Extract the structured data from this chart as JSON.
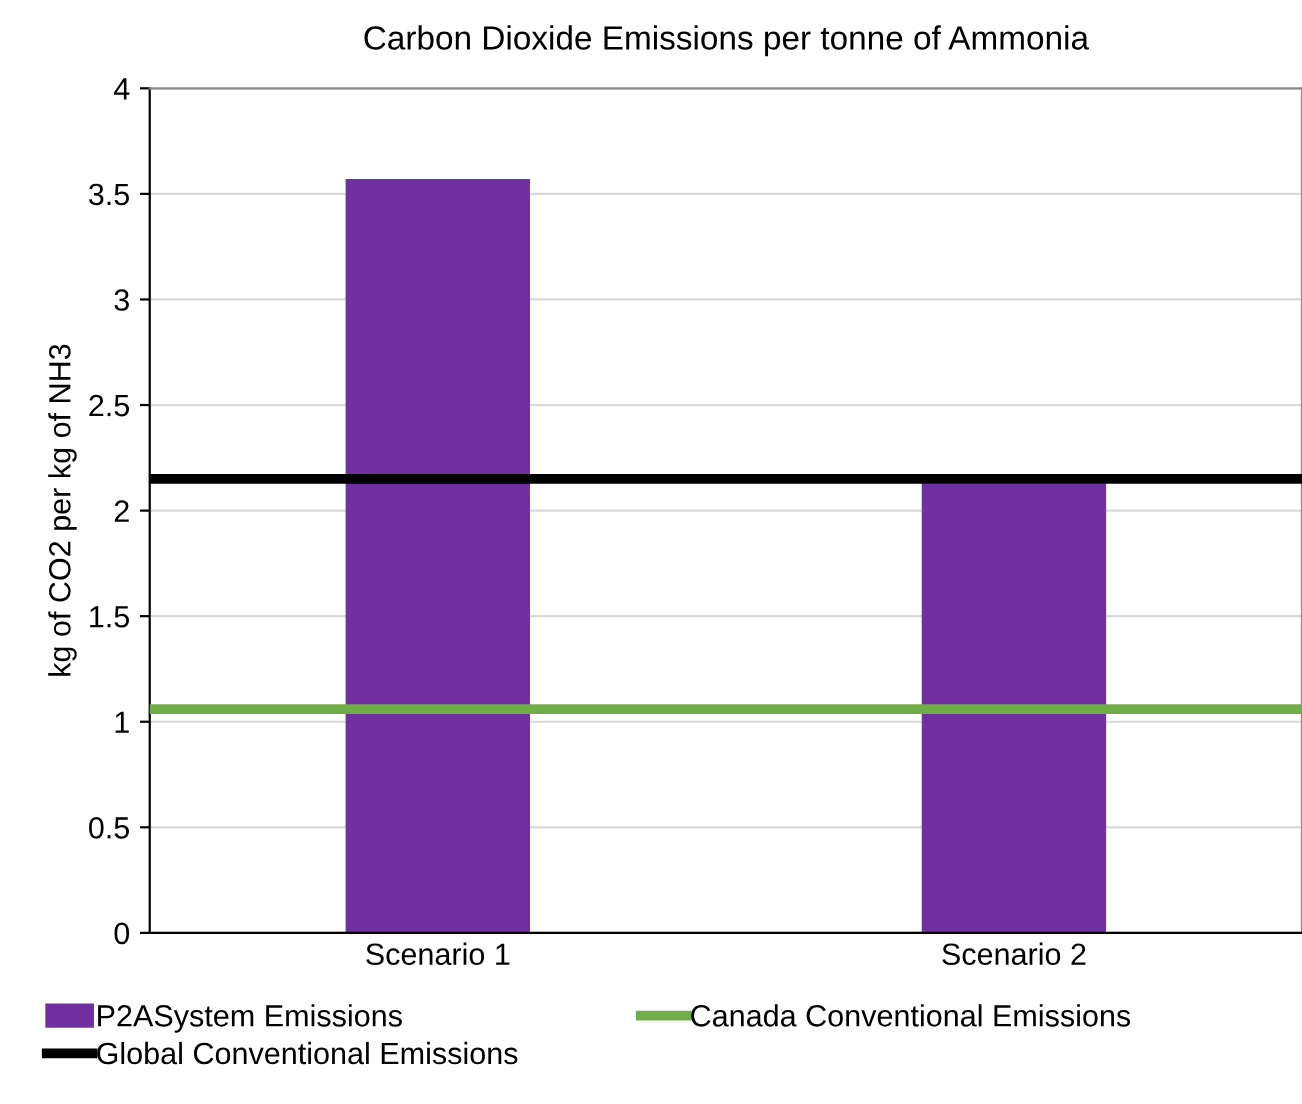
{
  "chart_data": {
    "type": "bar",
    "title": "Carbon Dioxide Emissions per tonne of Ammonia",
    "ylabel": "kg of CO2 per kg of NH3",
    "categories": [
      "Scenario 1",
      "Scenario 2"
    ],
    "series": [
      {
        "name": "P2ASystem Emissions",
        "color": "#7030a0",
        "values": [
          3.57,
          2.13
        ]
      }
    ],
    "ref_lines": [
      {
        "axis": "y",
        "value": 1.06,
        "label": "Canada Conventional Emissions",
        "color": "#70ad47"
      },
      {
        "axis": "y",
        "value": 2.15,
        "label": "Global Conventional Emissions",
        "color": "#000000"
      }
    ],
    "ylim": [
      0,
      4
    ],
    "yticks": [
      0,
      0.5,
      1,
      1.5,
      2,
      2.5,
      3,
      3.5,
      4
    ],
    "grid": "y",
    "legend": "bottom"
  }
}
